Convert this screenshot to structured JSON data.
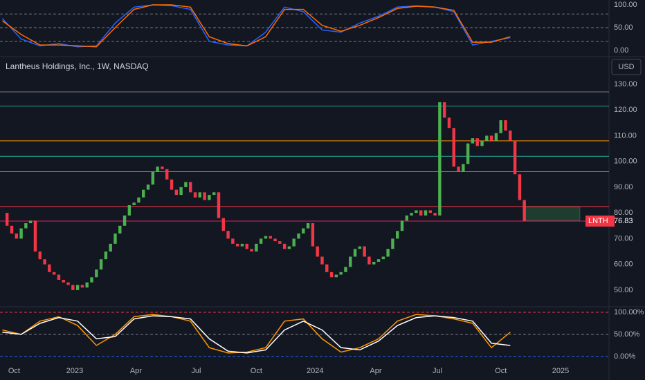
{
  "chart_data": [
    {
      "type": "line",
      "ylim": [
        -13.6,
        110.6
      ],
      "yticks": [
        {
          "value": 100,
          "label": "100.00"
        },
        {
          "value": 50,
          "label": "50.00"
        },
        {
          "value": 0,
          "label": "0.00"
        }
      ],
      "levels": [
        {
          "value": 80,
          "color": "#787b86"
        },
        {
          "value": 50,
          "color": "#787b86"
        },
        {
          "value": 20,
          "color": "#787b86"
        }
      ],
      "series": [
        {
          "color": "#2962ff",
          "x": [
            0,
            4,
            8,
            12,
            16,
            20,
            24,
            28,
            32,
            36,
            40,
            44,
            48,
            52,
            56,
            60,
            64,
            68,
            72,
            76,
            80,
            84,
            88,
            92,
            96,
            100,
            104,
            108
          ],
          "values": [
            70,
            25,
            10,
            15,
            8,
            10,
            60,
            95,
            100,
            98,
            90,
            20,
            12,
            10,
            40,
            95,
            85,
            45,
            40,
            60,
            75,
            95,
            98,
            95,
            85,
            12,
            20,
            28
          ]
        },
        {
          "color": "#ff6d00",
          "x": [
            0,
            4,
            8,
            12,
            16,
            20,
            24,
            28,
            32,
            36,
            40,
            44,
            48,
            52,
            56,
            60,
            64,
            68,
            72,
            76,
            80,
            84,
            88,
            92,
            96,
            100,
            104,
            108
          ],
          "values": [
            65,
            35,
            12,
            12,
            10,
            8,
            50,
            90,
            100,
            100,
            95,
            30,
            15,
            10,
            30,
            90,
            90,
            55,
            42,
            55,
            72,
            92,
            97,
            95,
            88,
            18,
            18,
            30
          ]
        }
      ]
    },
    {
      "type": "candlestick",
      "title": "Lantheus Holdings, Inc., 1W, NASDAQ",
      "currency": "USD",
      "up_color": "#4caf50",
      "down_color": "#f23645",
      "ylim": [
        43.8,
        139.9
      ],
      "yticks": [
        {
          "value": 50,
          "label": "50.00"
        },
        {
          "value": 60,
          "label": "60.00"
        },
        {
          "value": 70,
          "label": "70.00"
        },
        {
          "value": 80,
          "label": "80.00"
        },
        {
          "value": 90,
          "label": "90.00"
        },
        {
          "value": 100,
          "label": "100.00"
        },
        {
          "value": 110,
          "label": "110.00"
        },
        {
          "value": 120,
          "label": "120.00"
        },
        {
          "value": 130,
          "label": "130.00"
        }
      ],
      "xlim": [
        -0.5,
        129
      ],
      "xticks": [
        {
          "value": 2.5,
          "label": "Oct"
        },
        {
          "value": 15.4,
          "label": "2023"
        },
        {
          "value": 28.4,
          "label": "Apr"
        },
        {
          "value": 41.2,
          "label": "Jul"
        },
        {
          "value": 54,
          "label": "Oct"
        },
        {
          "value": 66.5,
          "label": "2024"
        },
        {
          "value": 79.4,
          "label": "Apr"
        },
        {
          "value": 92.5,
          "label": "Jul"
        },
        {
          "value": 106,
          "label": "Oct"
        },
        {
          "value": 118.7,
          "label": "2025"
        }
      ],
      "values": [
        80,
        75,
        72,
        70,
        74,
        76,
        77,
        65,
        62,
        60,
        57,
        56,
        54,
        53,
        52,
        50,
        52,
        51,
        53,
        55,
        58,
        62,
        65,
        68,
        72,
        75,
        79,
        83,
        84,
        86,
        89,
        91,
        96,
        98,
        97,
        93,
        89,
        87,
        90,
        92,
        88,
        86,
        88,
        85,
        87,
        88,
        78,
        73,
        70,
        68,
        67,
        68,
        66,
        65,
        68,
        70,
        71,
        70,
        69,
        68,
        66,
        67,
        70,
        72,
        74,
        76,
        67,
        63,
        60,
        57,
        55,
        56,
        57,
        59,
        63,
        66,
        67,
        63,
        60,
        61,
        62,
        63,
        66,
        70,
        73,
        77,
        79,
        80,
        81,
        79,
        81,
        80,
        79,
        123,
        117,
        113,
        98,
        96,
        99,
        107,
        109,
        106,
        108,
        110,
        108,
        111,
        116,
        112,
        108,
        95,
        85,
        76.83
      ],
      "levels": [
        {
          "value": 127,
          "color": "#787b86"
        },
        {
          "value": 121.5,
          "color": "#26a69a"
        },
        {
          "value": 108,
          "color": "#ff9800"
        },
        {
          "value": 102,
          "color": "#26a69a"
        },
        {
          "value": 96,
          "color": "#4caf50"
        },
        {
          "value": 82.5,
          "color": "#f23645"
        },
        {
          "value": 76.83,
          "color": "#e91e63"
        }
      ],
      "zone": {
        "x": [
          111,
          122.8
        ],
        "y": [
          77,
          82.3
        ],
        "color": "#1e3d2f"
      },
      "last": {
        "symbol": "LNTH",
        "value": 76.83,
        "color": "#f23645"
      }
    },
    {
      "type": "line",
      "ylim": [
        -21.9,
        110.9
      ],
      "yticks": [
        {
          "value": 100,
          "label": "100.00%"
        },
        {
          "value": 50,
          "label": "50.00%"
        },
        {
          "value": 0,
          "label": "0.00%"
        }
      ],
      "levels": [
        {
          "value": 100,
          "color": "#f23645"
        },
        {
          "value": 50,
          "color": "#787b86"
        },
        {
          "value": 0,
          "color": "#2962ff"
        }
      ],
      "series": [
        {
          "color": "#ff9800",
          "x": [
            0,
            4,
            8,
            12,
            16,
            20,
            24,
            28,
            32,
            36,
            40,
            44,
            48,
            52,
            56,
            60,
            64,
            68,
            72,
            76,
            80,
            84,
            88,
            92,
            96,
            100,
            104,
            108
          ],
          "values": [
            60,
            50,
            80,
            90,
            70,
            25,
            50,
            90,
            95,
            90,
            80,
            20,
            8,
            10,
            20,
            80,
            85,
            40,
            10,
            20,
            40,
            80,
            95,
            92,
            85,
            75,
            20,
            55
          ]
        },
        {
          "color": "#ffffff",
          "x": [
            0,
            4,
            8,
            12,
            16,
            20,
            24,
            28,
            32,
            36,
            40,
            44,
            48,
            52,
            56,
            60,
            64,
            68,
            72,
            76,
            80,
            84,
            88,
            92,
            96,
            100,
            104,
            108
          ],
          "values": [
            55,
            50,
            75,
            88,
            80,
            40,
            45,
            85,
            92,
            90,
            85,
            40,
            12,
            8,
            15,
            60,
            80,
            60,
            20,
            15,
            35,
            70,
            88,
            92,
            88,
            80,
            30,
            25
          ]
        }
      ]
    }
  ]
}
